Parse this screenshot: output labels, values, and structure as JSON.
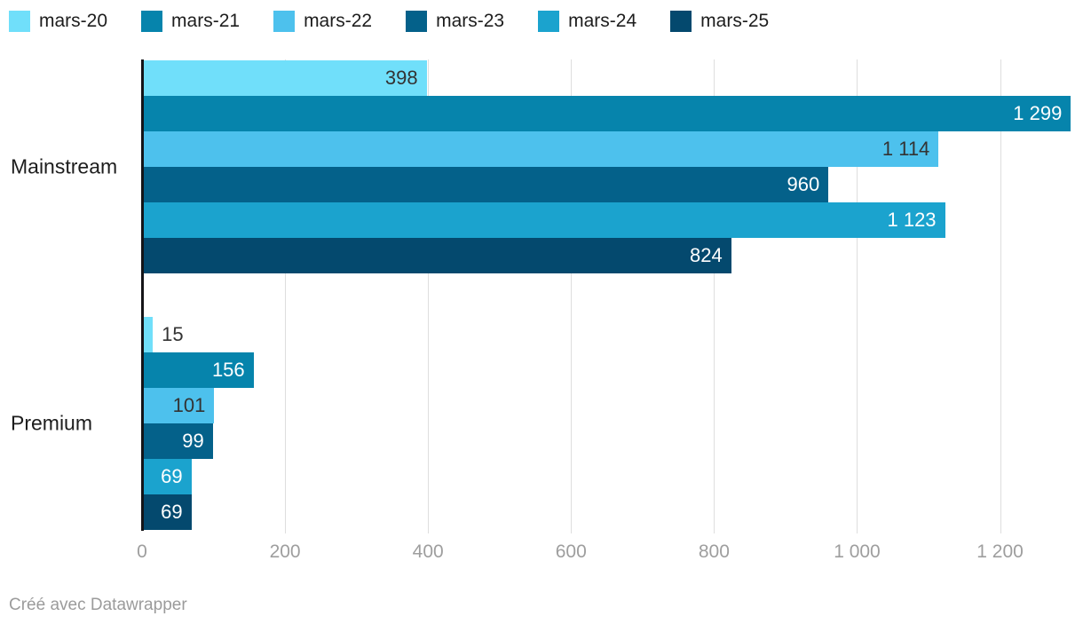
{
  "legend": {
    "items": [
      {
        "label": "mars-20",
        "color": "#70DFFA"
      },
      {
        "label": "mars-21",
        "color": "#0684AC"
      },
      {
        "label": "mars-22",
        "color": "#4DC1ED"
      },
      {
        "label": "mars-23",
        "color": "#04618A"
      },
      {
        "label": "mars-24",
        "color": "#1BA3CE"
      },
      {
        "label": "mars-25",
        "color": "#04496E"
      }
    ]
  },
  "chart_data": {
    "type": "bar",
    "orientation": "horizontal",
    "categories": [
      "Mainstream",
      "Premium"
    ],
    "series": [
      {
        "name": "mars-20",
        "color": "#70DFFA",
        "label_text_color": "#333333",
        "values": [
          398,
          15
        ],
        "labels": [
          "398",
          "15"
        ]
      },
      {
        "name": "mars-21",
        "color": "#0684AC",
        "label_text_color": "#ffffff",
        "values": [
          1299,
          156
        ],
        "labels": [
          "1 299",
          "156"
        ]
      },
      {
        "name": "mars-22",
        "color": "#4DC1ED",
        "label_text_color": "#333333",
        "values": [
          1114,
          101
        ],
        "labels": [
          "1 114",
          "101"
        ]
      },
      {
        "name": "mars-23",
        "color": "#04618A",
        "label_text_color": "#ffffff",
        "values": [
          960,
          99
        ],
        "labels": [
          "960",
          "99"
        ]
      },
      {
        "name": "mars-24",
        "color": "#1BA3CE",
        "label_text_color": "#ffffff",
        "values": [
          1123,
          69
        ],
        "labels": [
          "1 123",
          "69"
        ]
      },
      {
        "name": "mars-25",
        "color": "#04496E",
        "label_text_color": "#ffffff",
        "values": [
          824,
          69
        ],
        "labels": [
          "824",
          "69"
        ]
      }
    ],
    "x_axis": {
      "ticks": [
        0,
        200,
        400,
        600,
        800,
        1000,
        1200
      ],
      "tick_labels": [
        "0",
        "200",
        "400",
        "600",
        "800",
        "1 000",
        "1 200"
      ],
      "max": 1316,
      "grid": true
    },
    "xlabel": "",
    "ylabel": "",
    "legend_position": "top"
  },
  "footer": {
    "credit": "Créé avec Datawrapper"
  },
  "colors": {
    "axis_line": "#141418",
    "gridline": "#dedede",
    "tick_text": "#9e9e9e",
    "category_text": "#1d1d1d",
    "outside_label_text": "#333333",
    "footer_text": "#9b9b9b"
  }
}
